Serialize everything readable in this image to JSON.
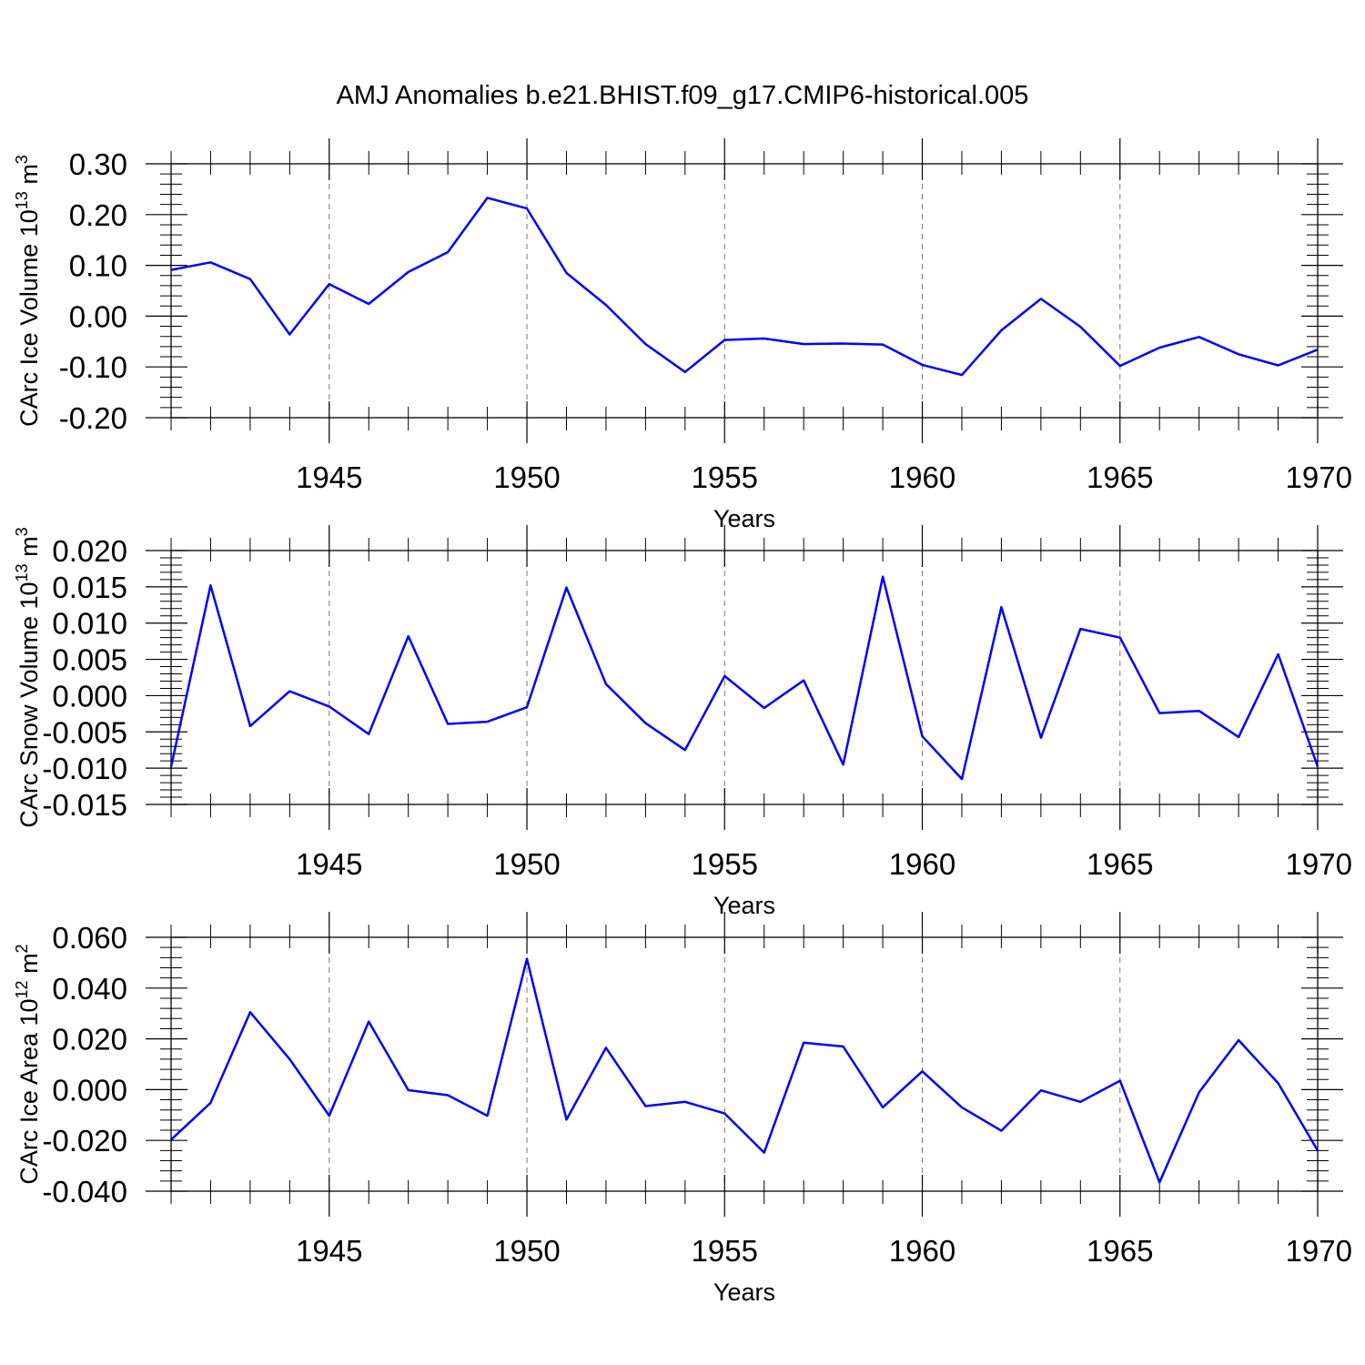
{
  "chart_data": {
    "type": "line",
    "title": "AMJ Anomalies b.e21.BHIST.f09_g17.CMIP6-historical.005",
    "line_color": "#0000ff",
    "x": [
      1941,
      1942,
      1943,
      1944,
      1945,
      1946,
      1947,
      1948,
      1949,
      1950,
      1951,
      1952,
      1953,
      1954,
      1955,
      1956,
      1957,
      1958,
      1959,
      1960,
      1961,
      1962,
      1963,
      1964,
      1965,
      1966,
      1967,
      1968,
      1969,
      1970
    ],
    "xlim": [
      1941,
      1970
    ],
    "xticks": [
      "1945",
      "1950",
      "1955",
      "1960",
      "1965",
      "1970"
    ],
    "xtick_values": [
      1945,
      1950,
      1955,
      1960,
      1965,
      1970
    ],
    "panels": [
      {
        "ylabel": "CArc Ice Volume 10",
        "ylabel_exp": "13",
        "ylabel_unit": " m",
        "ylabel_unit_exp": "3",
        "xlabel": "Years",
        "ylim": [
          -0.2,
          0.3
        ],
        "yticks": [
          "-0.20",
          "-0.10",
          "0.00",
          "0.10",
          "0.20",
          "0.30"
        ],
        "ytick_values": [
          -0.2,
          -0.1,
          0.0,
          0.1,
          0.2,
          0.3
        ],
        "values": [
          0.091,
          0.106,
          0.073,
          -0.036,
          0.063,
          0.024,
          0.087,
          0.126,
          0.233,
          0.212,
          0.085,
          0.022,
          -0.055,
          -0.11,
          -0.047,
          -0.044,
          -0.055,
          -0.054,
          -0.056,
          -0.096,
          -0.116,
          -0.028,
          0.034,
          -0.021,
          -0.098,
          -0.062,
          -0.041,
          -0.075,
          -0.097,
          -0.066
        ]
      },
      {
        "ylabel": "CArc Snow Volume 10",
        "ylabel_exp": "13",
        "ylabel_unit": " m",
        "ylabel_unit_exp": "3",
        "xlabel": "Years",
        "ylim": [
          -0.015,
          0.02
        ],
        "yticks": [
          "-0.015",
          "-0.010",
          "-0.005",
          "0.000",
          "0.005",
          "0.010",
          "0.015",
          "0.020"
        ],
        "ytick_values": [
          -0.015,
          -0.01,
          -0.005,
          0.0,
          0.005,
          0.01,
          0.015,
          0.02
        ],
        "values": [
          -0.0098,
          0.0152,
          -0.0042,
          0.0006,
          -0.0015,
          -0.0053,
          0.0082,
          -0.0039,
          -0.0036,
          -0.0016,
          0.0149,
          0.0016,
          -0.0038,
          -0.0075,
          0.0027,
          -0.0017,
          0.0021,
          -0.0095,
          0.0164,
          -0.0056,
          -0.0115,
          0.0122,
          -0.0058,
          0.0092,
          0.008,
          -0.0024,
          -0.0021,
          -0.0057,
          0.0057,
          -0.0098
        ]
      },
      {
        "ylabel": "CArc Ice Area 10",
        "ylabel_exp": "12",
        "ylabel_unit": " m",
        "ylabel_unit_exp": "2",
        "xlabel": "Years",
        "ylim": [
          -0.04,
          0.06
        ],
        "yticks": [
          "-0.040",
          "-0.020",
          "0.000",
          "0.020",
          "0.040",
          "0.060"
        ],
        "ytick_values": [
          -0.04,
          -0.02,
          0.0,
          0.02,
          0.04,
          0.06
        ],
        "values": [
          -0.0197,
          -0.0052,
          0.0305,
          0.012,
          -0.0103,
          0.0268,
          -0.0002,
          -0.0022,
          -0.0103,
          0.0515,
          -0.0118,
          0.0165,
          -0.0065,
          -0.0048,
          -0.0094,
          -0.0248,
          0.0185,
          0.017,
          -0.007,
          0.0072,
          -0.007,
          -0.0162,
          -0.0003,
          -0.0048,
          0.0035,
          -0.0365,
          -0.001,
          0.0195,
          0.0025,
          -0.024
        ]
      }
    ]
  }
}
